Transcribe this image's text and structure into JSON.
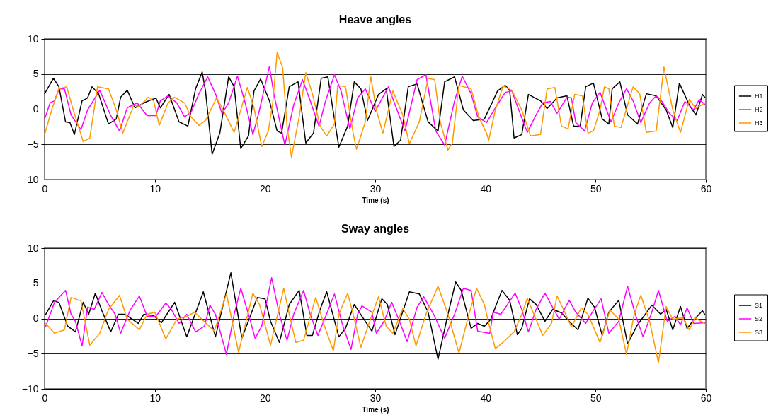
{
  "chart_data": [
    {
      "type": "line",
      "title": "Heave angles",
      "xlabel": "Time (s)",
      "xlim": [
        0,
        60
      ],
      "xticks": [
        0,
        10,
        20,
        30,
        40,
        50,
        60
      ],
      "ylim": [
        -10,
        10
      ],
      "yticks": [
        -10,
        -5,
        0,
        5,
        10
      ],
      "grid": "y",
      "legend": "right",
      "series": [
        {
          "name": "H1",
          "color": "#000000",
          "x": [
            0,
            0.8,
            1.3,
            1.9,
            2.3,
            2.7,
            3.4,
            3.9,
            4.3,
            4.9,
            5.8,
            6.5,
            6.9,
            7.5,
            8.2,
            9.0,
            10.1,
            10.5,
            11.3,
            12.2,
            13.0,
            13.7,
            14.3,
            14.6,
            15.2,
            15.9,
            16.7,
            17.2,
            17.8,
            18.5,
            19.0,
            19.6,
            20.4,
            21.1,
            21.5,
            22.2,
            23.0,
            23.7,
            24.4,
            25.1,
            25.7,
            26.7,
            27.5,
            28.1,
            28.7,
            29.3,
            30.3,
            31.0,
            31.7,
            32.3,
            33.0,
            33.8,
            34.8,
            35.7,
            36.3,
            37.2,
            38.0,
            38.9,
            39.9,
            40.6,
            41.1,
            41.8,
            42.2,
            42.6,
            43.3,
            43.9,
            45.0,
            45.6,
            46.5,
            47.4,
            48.0,
            48.6,
            49.1,
            49.8,
            50.6,
            51.2,
            51.5,
            52.2,
            52.9,
            53.8,
            54.6,
            55.5,
            56.4,
            57.0,
            57.6,
            58.5,
            59.1,
            59.7,
            59.9
          ],
          "values": [
            2.2,
            4.4,
            3.2,
            -1.8,
            -1.9,
            -3.6,
            1.2,
            1.6,
            3.2,
            2.2,
            -2.1,
            -1.4,
            1.7,
            2.7,
            0.2,
            0.9,
            1.6,
            0.2,
            2.1,
            -1.8,
            -2.4,
            2.9,
            5.3,
            2.6,
            -6.4,
            -3.4,
            4.6,
            3.2,
            -5.6,
            -3.8,
            2.6,
            4.3,
            1.2,
            -3.1,
            -3.4,
            3.2,
            3.9,
            -4.8,
            -3.4,
            4.4,
            4.6,
            -5.4,
            -2.4,
            3.9,
            2.9,
            -1.6,
            2.1,
            2.9,
            -5.3,
            -4.4,
            3.2,
            3.6,
            -1.8,
            -3.1,
            3.9,
            4.6,
            -0.1,
            -1.6,
            -1.4,
            0.9,
            2.6,
            3.4,
            2.7,
            -4.1,
            -3.6,
            2.1,
            1.2,
            0.1,
            1.6,
            1.9,
            -2.4,
            -2.4,
            3.2,
            3.7,
            -1.4,
            -2.1,
            2.9,
            3.9,
            -0.8,
            -2.1,
            2.2,
            1.9,
            -0.1,
            -2.6,
            3.7,
            0.6,
            -0.8,
            2.1,
            1.7
          ]
        },
        {
          "name": "H2",
          "color": "#ff00ff",
          "x": [
            0,
            0.5,
            0.9,
            1.3,
            1.8,
            2.4,
            3.3,
            3.9,
            5.0,
            6.0,
            6.8,
            7.5,
            8.4,
            9.3,
            10.1,
            10.5,
            11.2,
            12.0,
            12.7,
            13.3,
            14.0,
            14.8,
            15.5,
            16.1,
            16.7,
            17.5,
            18.2,
            18.9,
            19.5,
            20.4,
            20.8,
            21.8,
            22.6,
            23.4,
            24.1,
            24.9,
            25.5,
            26.3,
            26.9,
            27.7,
            28.4,
            29.1,
            30.0,
            31.2,
            32.1,
            32.7,
            33.8,
            34.6,
            35.5,
            36.3,
            37.2,
            37.9,
            38.7,
            39.3,
            40.1,
            40.9,
            41.8,
            42.4,
            43.1,
            43.8,
            44.6,
            45.2,
            45.9,
            46.5,
            47.4,
            47.8,
            48.2,
            49.0,
            49.7,
            50.4,
            51.4,
            52.1,
            52.8,
            53.4,
            54.1,
            54.9,
            55.5,
            55.9,
            56.7,
            57.4,
            58.1,
            58.9,
            59.4,
            59.9
          ],
          "values": [
            -1.4,
            0.9,
            1.2,
            2.9,
            2.9,
            -0.8,
            -2.9,
            -0.1,
            2.7,
            -0.9,
            -3.1,
            0.2,
            0.9,
            -0.9,
            -0.9,
            1.2,
            1.9,
            0.9,
            -1.1,
            -0.4,
            2.2,
            4.6,
            2.2,
            -0.6,
            0.9,
            4.7,
            0.9,
            -3.6,
            -0.1,
            6.1,
            2.2,
            -5.1,
            0.6,
            4.2,
            1.2,
            -2.4,
            1.2,
            4.9,
            2.6,
            -2.8,
            1.6,
            2.9,
            -0.3,
            3.2,
            -0.6,
            -3.1,
            4.2,
            4.9,
            -3.1,
            -5.1,
            1.2,
            4.7,
            2.2,
            -1.1,
            -1.9,
            0.2,
            2.4,
            2.6,
            -0.4,
            -3.3,
            -0.8,
            0.9,
            1.1,
            -0.6,
            1.7,
            1.6,
            -1.9,
            -3.1,
            0.9,
            2.4,
            -1.8,
            0.9,
            2.9,
            1.2,
            -1.9,
            0.9,
            1.9,
            1.4,
            -0.6,
            -1.6,
            1.1,
            -0.1,
            1.4,
            0.7
          ]
        },
        {
          "name": "H3",
          "color": "#ff9900",
          "x": [
            0,
            0.7,
            1.3,
            2.0,
            2.6,
            3.5,
            4.1,
            4.8,
            5.8,
            6.5,
            7.1,
            8.1,
            8.6,
            9.4,
            9.9,
            10.4,
            11.2,
            11.8,
            12.7,
            13.3,
            14.0,
            14.6,
            15.6,
            16.3,
            17.2,
            18.4,
            19.0,
            19.7,
            20.3,
            20.7,
            21.1,
            21.6,
            22.0,
            22.4,
            23.1,
            23.7,
            24.3,
            25.0,
            25.6,
            26.3,
            26.6,
            27.3,
            28.0,
            28.3,
            29.1,
            29.6,
            30.1,
            30.7,
            31.6,
            32.5,
            33.1,
            34.0,
            34.8,
            35.4,
            35.9,
            36.6,
            37.0,
            37.6,
            38.7,
            39.4,
            40.1,
            40.3,
            40.9,
            41.6,
            42.4,
            43.3,
            44.1,
            45.0,
            45.6,
            46.3,
            46.9,
            47.5,
            48.1,
            48.8,
            49.3,
            49.8,
            50.4,
            50.8,
            51.2,
            51.7,
            52.3,
            53.4,
            54.0,
            54.6,
            55.5,
            56.2,
            57.0,
            57.7,
            58.5,
            59.1,
            59.9
          ],
          "values": [
            -3.6,
            0.2,
            2.9,
            3.2,
            -0.1,
            -4.6,
            -4.1,
            3.2,
            2.9,
            -0.1,
            -3.4,
            0.6,
            0.4,
            1.7,
            1.2,
            -2.3,
            0.9,
            1.7,
            0.9,
            -1.1,
            -2.3,
            -1.6,
            1.6,
            -0.4,
            -3.3,
            3.1,
            0.2,
            -5.3,
            -3.1,
            0.9,
            8.1,
            5.9,
            -2.4,
            -6.8,
            -1.1,
            5.2,
            2.2,
            -2.4,
            -3.8,
            -2.1,
            3.4,
            3.2,
            -3.4,
            -5.7,
            -1.8,
            4.6,
            -0.1,
            -3.4,
            2.6,
            -0.8,
            -4.9,
            -1.8,
            4.4,
            4.2,
            -1.8,
            -5.8,
            -4.8,
            3.4,
            2.9,
            -1.1,
            -3.4,
            -4.4,
            -0.1,
            3.3,
            2.7,
            -0.1,
            -3.8,
            -3.6,
            2.9,
            3.1,
            -2.4,
            -2.8,
            2.1,
            1.9,
            -3.4,
            -3.1,
            -0.1,
            3.2,
            2.9,
            -2.4,
            -2.6,
            3.2,
            2.2,
            -3.3,
            -3.1,
            6.0,
            -0.1,
            -3.3,
            1.4,
            0.1,
            0.9
          ]
        }
      ]
    },
    {
      "type": "line",
      "title": "Sway angles",
      "xlabel": "Time (s)",
      "xlim": [
        0,
        60
      ],
      "xticks": [
        0,
        10,
        20,
        30,
        40,
        50,
        60
      ],
      "ylim": [
        -10,
        10
      ],
      "yticks": [
        -10,
        -5,
        0,
        5,
        10
      ],
      "grid": "y",
      "legend": "right",
      "series": [
        {
          "name": "S1",
          "color": "#000000",
          "x": [
            0.1,
            0.8,
            1.3,
            2.1,
            2.8,
            3.5,
            4.0,
            4.6,
            5.2,
            6.0,
            6.7,
            7.3,
            8.5,
            9.0,
            9.9,
            10.6,
            11.8,
            12.9,
            14.4,
            15.5,
            16.9,
            17.9,
            19.3,
            20.0,
            20.5,
            21.3,
            22.2,
            23.1,
            23.8,
            24.3,
            25.0,
            25.6,
            26.7,
            27.3,
            28.1,
            28.8,
            29.7,
            30.6,
            31.1,
            31.8,
            33.1,
            34.0,
            34.8,
            35.7,
            36.6,
            37.3,
            37.8,
            38.7,
            39.3,
            39.9,
            40.5,
            40.9,
            41.5,
            42.2,
            42.9,
            43.3,
            44.0,
            44.6,
            45.4,
            46.1,
            46.9,
            47.6,
            48.4,
            49.3,
            49.9,
            50.6,
            51.2,
            52.1,
            52.9,
            53.8,
            55.1,
            55.9,
            56.4,
            57.0,
            57.7,
            58.3,
            58.9,
            59.7,
            59.9
          ],
          "values": [
            0.6,
            2.5,
            2.3,
            -1.1,
            -1.9,
            2.3,
            0.6,
            3.6,
            1.1,
            -1.9,
            0.6,
            0.6,
            -0.7,
            0.6,
            0.4,
            -0.6,
            2.3,
            -2.6,
            3.8,
            -2.6,
            6.5,
            -2.8,
            3.0,
            2.8,
            -0.4,
            -3.4,
            2.0,
            4.0,
            -2.4,
            -2.4,
            1.3,
            3.8,
            -2.6,
            -1.4,
            2.0,
            0.3,
            -1.8,
            2.8,
            2.0,
            -2.3,
            3.8,
            3.5,
            0.9,
            -5.8,
            0.6,
            5.2,
            4.0,
            -1.4,
            -0.7,
            -1.1,
            -0.1,
            1.6,
            4.0,
            2.6,
            -2.3,
            -1.4,
            2.8,
            2.0,
            -0.4,
            1.3,
            0.8,
            -0.4,
            -1.6,
            2.9,
            1.6,
            -2.4,
            0.9,
            2.6,
            -3.6,
            -0.9,
            1.9,
            0.6,
            1.3,
            -1.6,
            1.7,
            -1.4,
            -0.2,
            1.1,
            0.6
          ]
        },
        {
          "name": "S2",
          "color": "#ff00ff",
          "x": [
            0.1,
            0.9,
            1.9,
            2.4,
            2.8,
            3.4,
            3.9,
            4.5,
            5.2,
            5.8,
            6.4,
            6.9,
            7.8,
            8.6,
            9.3,
            10.1,
            11.0,
            11.5,
            12.2,
            12.9,
            13.7,
            14.5,
            15.0,
            15.5,
            16.5,
            17.2,
            17.8,
            18.5,
            19.1,
            19.7,
            20.6,
            21.3,
            22.0,
            22.6,
            23.5,
            24.1,
            24.8,
            25.4,
            26.3,
            27.0,
            27.8,
            28.4,
            28.8,
            29.7,
            30.1,
            30.8,
            31.5,
            32.2,
            32.9,
            33.8,
            34.4,
            35.3,
            36.3,
            37.2,
            38.0,
            38.7,
            39.3,
            40.4,
            40.7,
            41.4,
            42.0,
            42.7,
            43.3,
            43.9,
            44.6,
            45.4,
            46.1,
            46.7,
            47.6,
            48.2,
            49.1,
            49.7,
            50.5,
            51.2,
            52.1,
            52.9,
            53.6,
            54.3,
            55.1,
            55.7,
            56.5,
            57.2,
            57.7,
            58.3,
            58.9,
            59.9
          ],
          "values": [
            -1.1,
            2.3,
            4.0,
            0.6,
            -0.4,
            -3.9,
            1.6,
            1.3,
            3.7,
            2.0,
            0.6,
            -2.1,
            1.3,
            3.2,
            0.3,
            0.3,
            2.2,
            1.3,
            -0.7,
            0.6,
            -1.9,
            -1.1,
            1.9,
            0.6,
            -5.1,
            0.6,
            4.3,
            0.6,
            -2.8,
            -1.1,
            5.8,
            0.6,
            -3.1,
            0.6,
            4.0,
            0.6,
            -2.4,
            -0.1,
            3.5,
            -0.7,
            -4.4,
            0.6,
            1.8,
            0.9,
            -2.1,
            -0.4,
            2.3,
            -0.4,
            -3.3,
            1.6,
            3.1,
            0.6,
            -2.8,
            0.6,
            4.3,
            4.0,
            -1.8,
            -2.1,
            0.9,
            0.6,
            2.0,
            3.6,
            1.3,
            -1.9,
            1.3,
            3.6,
            1.6,
            -0.1,
            2.6,
            0.9,
            -0.7,
            0.9,
            2.8,
            -2.1,
            -0.4,
            4.6,
            0.6,
            -2.6,
            0.9,
            4.0,
            -0.4,
            0.3,
            -0.9,
            1.5,
            -0.7,
            -0.6
          ]
        },
        {
          "name": "S3",
          "color": "#ff9900",
          "x": [
            0.1,
            0.9,
            1.8,
            2.4,
            3.3,
            4.1,
            5.0,
            5.8,
            6.8,
            7.5,
            8.6,
            9.3,
            10.0,
            11.0,
            12.0,
            12.9,
            13.6,
            15.4,
            16.5,
            17.6,
            18.9,
            19.5,
            20.5,
            21.7,
            22.2,
            22.8,
            23.5,
            24.6,
            25.4,
            26.2,
            26.7,
            27.5,
            28.0,
            28.7,
            29.5,
            30.3,
            31.0,
            31.6,
            32.5,
            33.1,
            33.7,
            34.6,
            35.7,
            36.6,
            37.6,
            38.5,
            39.2,
            39.9,
            40.3,
            40.9,
            41.6,
            42.6,
            43.3,
            43.8,
            44.4,
            45.2,
            46.0,
            46.5,
            47.2,
            47.8,
            48.7,
            49.3,
            50.4,
            51.3,
            52.1,
            52.8,
            53.5,
            54.1,
            54.9,
            55.7,
            56.4,
            57.0,
            57.9,
            58.5,
            59.0,
            59.9
          ],
          "values": [
            -0.7,
            -2.1,
            -1.6,
            3.0,
            2.5,
            -3.8,
            -2.1,
            1.3,
            3.3,
            -0.1,
            -1.6,
            0.6,
            0.9,
            -2.9,
            -0.1,
            0.3,
            0.9,
            -1.8,
            3.5,
            -4.8,
            3.6,
            2.0,
            -3.8,
            4.3,
            0.6,
            -3.4,
            -3.1,
            3.0,
            -1.1,
            -4.6,
            0.6,
            3.6,
            0.6,
            -4.1,
            -0.4,
            3.1,
            -1.1,
            -2.1,
            1.4,
            -0.1,
            -3.9,
            0.6,
            4.6,
            0.6,
            -4.9,
            0.6,
            4.3,
            2.0,
            -0.7,
            -4.3,
            -3.4,
            -1.9,
            0.6,
            2.9,
            0.6,
            -2.4,
            -0.7,
            3.2,
            0.9,
            -1.2,
            1.5,
            0.6,
            -3.4,
            1.2,
            -0.1,
            -5.1,
            0.6,
            3.3,
            -0.4,
            -6.3,
            1.7,
            -0.1,
            0.1,
            -1.6,
            0.1,
            -0.7
          ]
        }
      ]
    }
  ]
}
